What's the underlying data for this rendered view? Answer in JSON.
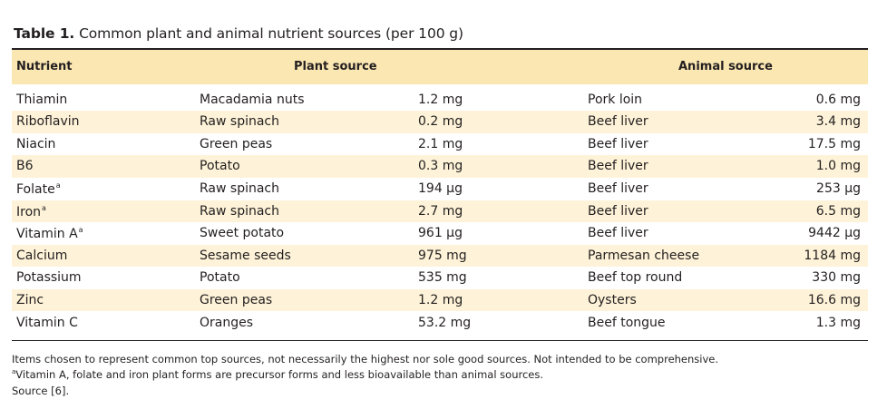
{
  "table": {
    "title_label": "Table 1.",
    "title_text": "Common plant and animal nutrient sources (per 100 g)",
    "headers": {
      "nutrient": "Nutrient",
      "plant": "Plant source",
      "animal": "Animal source"
    },
    "footnote_marker": "a",
    "rows": [
      {
        "nutrient": "Thiamin",
        "fn": "",
        "plant": "Macadamia nuts",
        "plant_amount": "1.2 mg",
        "animal": "Pork loin",
        "animal_amount": "0.6 mg"
      },
      {
        "nutrient": "Riboflavin",
        "fn": "",
        "plant": "Raw spinach",
        "plant_amount": "0.2 mg",
        "animal": "Beef liver",
        "animal_amount": "3.4 mg"
      },
      {
        "nutrient": "Niacin",
        "fn": "",
        "plant": "Green peas",
        "plant_amount": "2.1 mg",
        "animal": "Beef liver",
        "animal_amount": "17.5 mg"
      },
      {
        "nutrient": "B6",
        "fn": "",
        "plant": "Potato",
        "plant_amount": "0.3 mg",
        "animal": "Beef liver",
        "animal_amount": "1.0 mg"
      },
      {
        "nutrient": "Folate",
        "fn": "a",
        "plant": "Raw spinach",
        "plant_amount": "194 µg",
        "animal": "Beef liver",
        "animal_amount": "253 µg"
      },
      {
        "nutrient": "Iron",
        "fn": "a",
        "plant": "Raw spinach",
        "plant_amount": "2.7 mg",
        "animal": "Beef liver",
        "animal_amount": "6.5 mg"
      },
      {
        "nutrient": "Vitamin A",
        "fn": "a",
        "plant": "Sweet potato",
        "plant_amount": "961 µg",
        "animal": "Beef liver",
        "animal_amount": "9442 µg"
      },
      {
        "nutrient": "Calcium",
        "fn": "",
        "plant": "Sesame seeds",
        "plant_amount": "975 mg",
        "animal": "Parmesan cheese",
        "animal_amount": "1184 mg"
      },
      {
        "nutrient": "Potassium",
        "fn": "",
        "plant": "Potato",
        "plant_amount": "535 mg",
        "animal": "Beef top round",
        "animal_amount": "330 mg"
      },
      {
        "nutrient": "Zinc",
        "fn": "",
        "plant": "Green peas",
        "plant_amount": "1.2 mg",
        "animal": "Oysters",
        "animal_amount": "16.6 mg"
      },
      {
        "nutrient": "Vitamin C",
        "fn": "",
        "plant": "Oranges",
        "plant_amount": "53.2 mg",
        "animal": "Beef tongue",
        "animal_amount": "1.3 mg"
      }
    ]
  },
  "footnotes": {
    "note1": "Items chosen to represent common top sources, not necessarily the highest nor sole good sources. Not intended to be comprehensive.",
    "note2_marker": "a",
    "note2": "Vitamin A, folate and iron plant forms are precursor forms and less bioavailable than animal sources.",
    "source": "Source [6]."
  },
  "colors": {
    "header_bg": "#fbe7b2",
    "alt_row_bg": "#fef3d8",
    "text": "#231f20"
  }
}
